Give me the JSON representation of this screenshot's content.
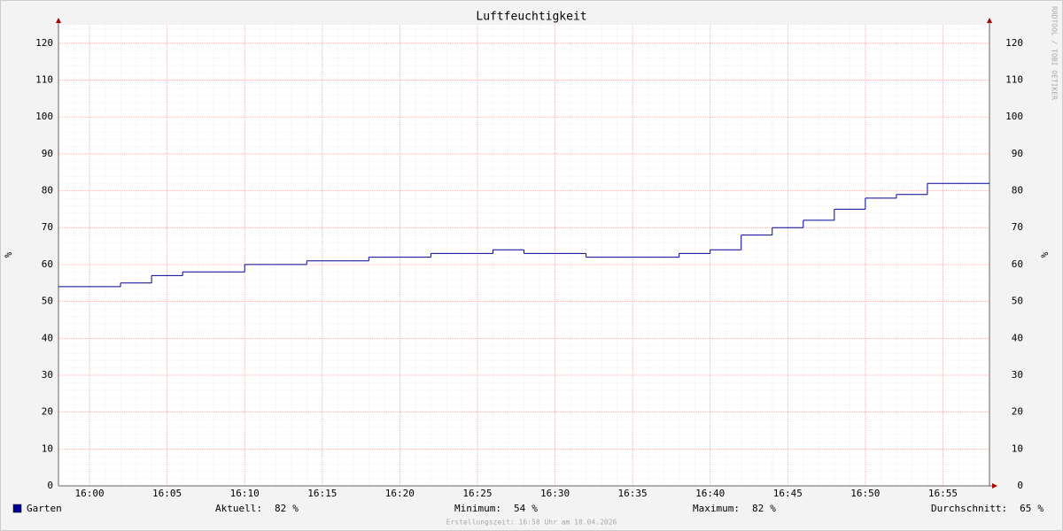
{
  "chart_data": {
    "type": "step",
    "title": "Luftfeuchtigkeit",
    "y_label": "%",
    "y2_label": "%",
    "watermark": "RRDTOOL / TOBI OETIKER",
    "footer": "Erstellungszeit: 16:58 Uhr am 18.04.2026",
    "x": [
      "15:58",
      "16:00",
      "16:02",
      "16:04",
      "16:06",
      "16:08",
      "16:10",
      "16:12",
      "16:14",
      "16:16",
      "16:18",
      "16:20",
      "16:22",
      "16:24",
      "16:26",
      "16:28",
      "16:30",
      "16:32",
      "16:34",
      "16:36",
      "16:38",
      "16:40",
      "16:42",
      "16:44",
      "16:46",
      "16:48",
      "16:50",
      "16:52",
      "16:54",
      "16:56"
    ],
    "series": [
      {
        "name": "Garten",
        "color": "#000099",
        "values": [
          54,
          54,
          55,
          57,
          58,
          58,
          60,
          60,
          61,
          61,
          62,
          62,
          63,
          63,
          64,
          63,
          63,
          62,
          62,
          62,
          63,
          64,
          68,
          70,
          72,
          75,
          78,
          79,
          82,
          82
        ]
      }
    ],
    "xlim": [
      "15:58",
      "16:58"
    ],
    "xticks": [
      "16:00",
      "16:05",
      "16:10",
      "16:15",
      "16:20",
      "16:25",
      "16:30",
      "16:35",
      "16:40",
      "16:45",
      "16:50",
      "16:55"
    ],
    "ylim": [
      0,
      125
    ],
    "yticks": [
      0,
      10,
      20,
      30,
      40,
      50,
      60,
      70,
      80,
      90,
      100,
      110,
      120
    ],
    "grid": true,
    "stats_unit": "%",
    "stats": [
      {
        "label": "Aktuell:",
        "value": 82
      },
      {
        "label": "Minimum:",
        "value": 54
      },
      {
        "label": "Maximum:",
        "value": 82
      },
      {
        "label": "Durchschnitt:",
        "value": 65
      }
    ]
  }
}
